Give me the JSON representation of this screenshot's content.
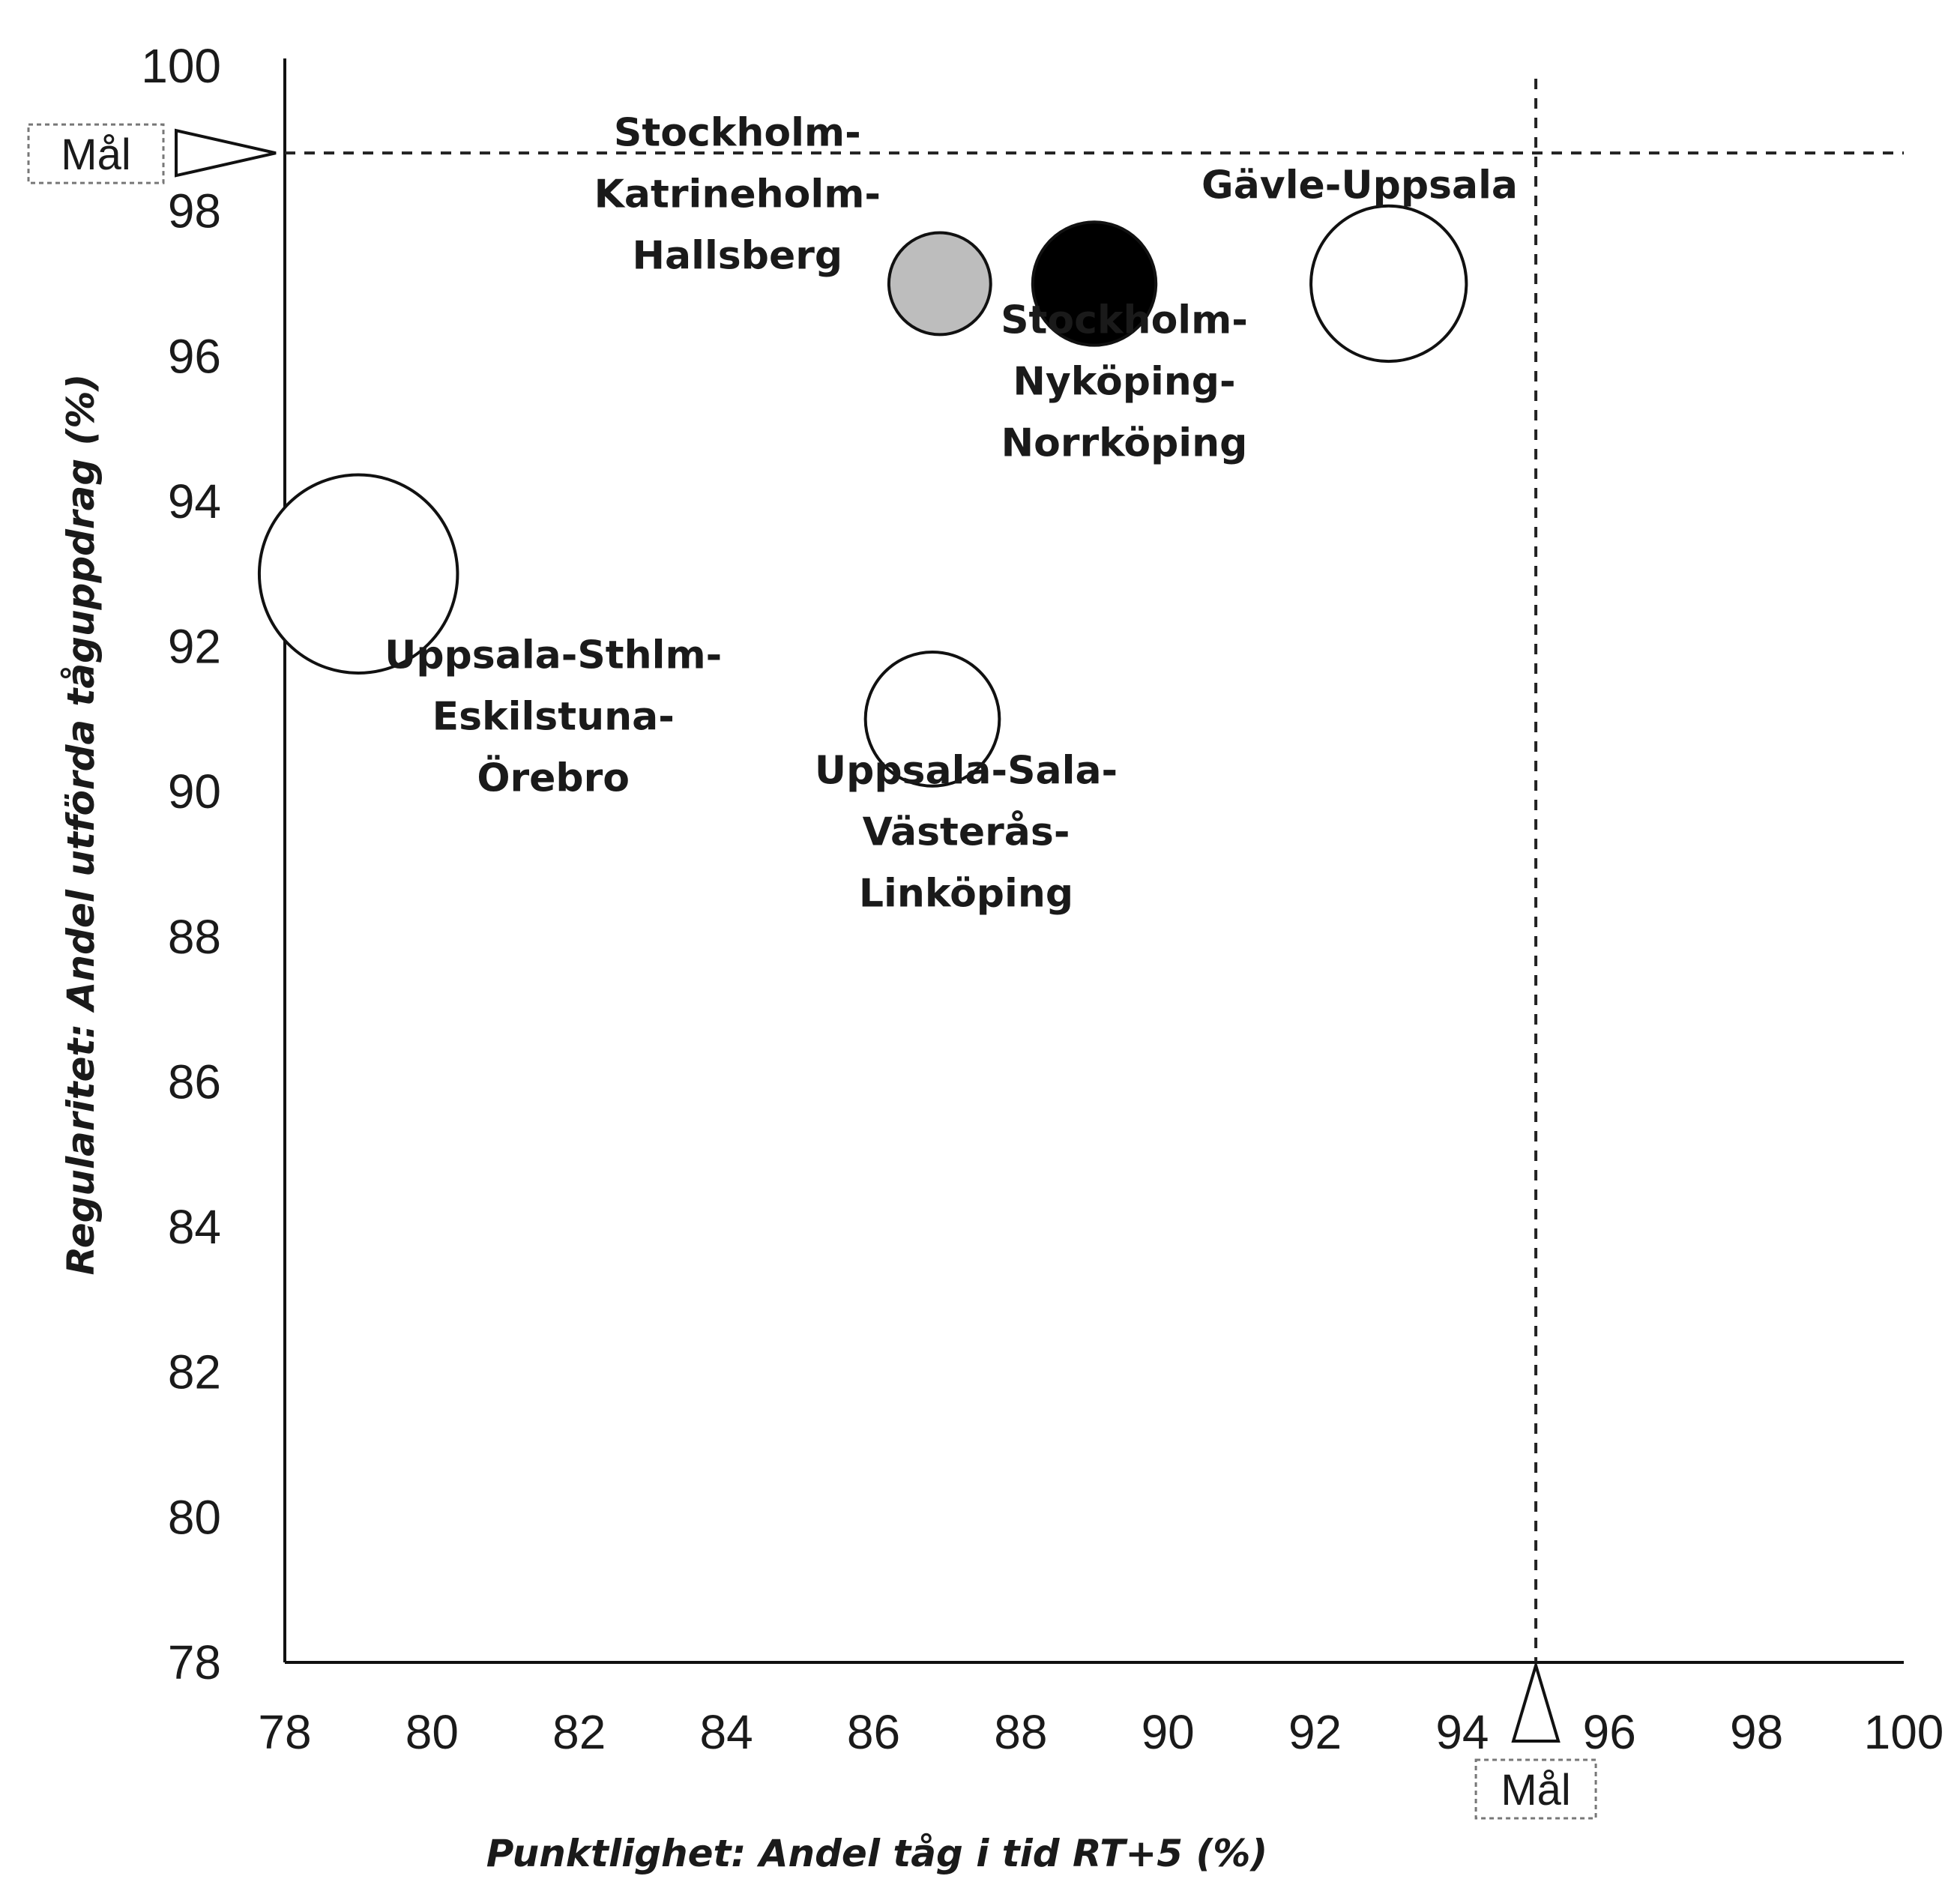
{
  "chart_data": {
    "type": "scatter",
    "xlabel": "Punktlighet: Andel tåg i tid RT+5 (%)",
    "ylabel": "Regularitet: Andel utförda tåguppdrag (%)",
    "xlim": [
      78,
      100
    ],
    "ylim": [
      78,
      100
    ],
    "x_ticks": [
      "78",
      "80",
      "82",
      "84",
      "86",
      "88",
      "90",
      "92",
      "94",
      "96",
      "98",
      "100"
    ],
    "y_ticks": [
      "100",
      "98",
      "96",
      "94",
      "92",
      "90",
      "88",
      "86",
      "84",
      "82",
      "80",
      "78"
    ],
    "grid": false,
    "legend": "none",
    "goal": {
      "label": "Mål",
      "x": 95,
      "y": 98.8
    },
    "points": [
      {
        "label_lines": [
          "Stockholm-",
          "Katrineholm-",
          "Hallsberg"
        ],
        "x": 86.9,
        "y": 97.0,
        "size": 0.3,
        "fill": "#bdbdbd"
      },
      {
        "label_lines": [
          "Stockholm-",
          "Nyköping-",
          "Norrköping"
        ],
        "x": 89.0,
        "y": 97.0,
        "size": 0.4,
        "fill": "#000000"
      },
      {
        "label_lines": [
          "Gävle-Uppsala"
        ],
        "x": 93.0,
        "y": 97.0,
        "size": 0.55,
        "fill": "#ffffff"
      },
      {
        "label_lines": [
          "Uppsala-Sthlm-",
          "Eskilstuna-",
          "Örebro"
        ],
        "x": 79.0,
        "y": 93.0,
        "size": 0.75,
        "fill": "#ffffff"
      },
      {
        "label_lines": [
          "Uppsala-Sala-",
          "Västerås-",
          "Linköping"
        ],
        "x": 86.8,
        "y": 91.0,
        "size": 0.45,
        "fill": "#ffffff"
      }
    ]
  }
}
